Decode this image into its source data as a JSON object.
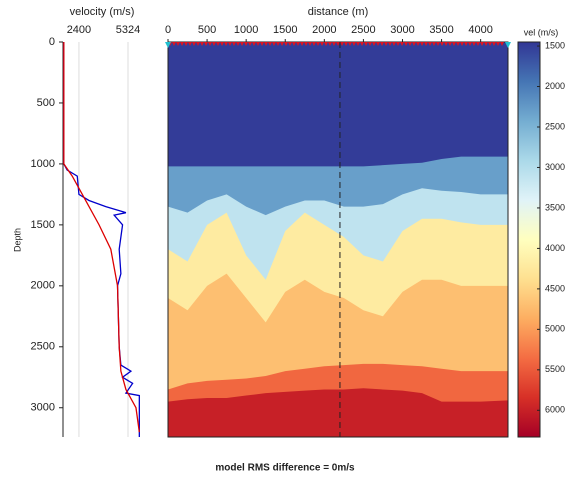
{
  "caption": "model RMS difference = 0m/s",
  "chart_data": [
    {
      "type": "line",
      "xlabel": "velocity (m/s)",
      "ylabel": "Depth",
      "xlim": [
        1450,
        6040
      ],
      "xticks": [
        2400,
        5324
      ],
      "ylim": [
        0,
        3240
      ],
      "yticks": [
        0,
        500,
        1000,
        1500,
        2000,
        2500,
        3000
      ],
      "grid": true,
      "series": [
        {
          "color": "#0000cc",
          "x": [
            1500,
            1500,
            1700,
            2300,
            2400,
            3000,
            4000,
            5200,
            4500,
            5000,
            4800,
            4900,
            4700,
            4800,
            4900,
            5500,
            5000,
            5600,
            5200,
            6000,
            6000
          ],
          "values": [
            0,
            1000,
            1050,
            1100,
            1250,
            1300,
            1350,
            1400,
            1420,
            1500,
            1700,
            1900,
            2000,
            2500,
            2650,
            2700,
            2750,
            2800,
            2880,
            2900,
            3240
          ]
        },
        {
          "color": "#dd0000",
          "x": [
            1500,
            1500,
            2000,
            2800,
            3600,
            4300,
            4700,
            4800,
            4900,
            5200,
            5800,
            6000
          ],
          "values": [
            0,
            1000,
            1100,
            1300,
            1500,
            1700,
            2000,
            2500,
            2700,
            2850,
            3000,
            3200
          ]
        }
      ]
    },
    {
      "type": "section",
      "xlabel": "distance (m)",
      "xlim": [
        0,
        4350
      ],
      "xticks": [
        0,
        500,
        1000,
        1500,
        2000,
        2500,
        3000,
        3500,
        4000,
        4000.0001
      ],
      "ylim": [
        0,
        3240
      ],
      "well_x": 2200,
      "colormap": [
        "#313695",
        "#4575b4",
        "#74add1",
        "#abd9e9",
        "#e0f3f8",
        "#ffffbf",
        "#fee090",
        "#fdae61",
        "#f46d43",
        "#d73027",
        "#a50026"
      ],
      "clim": [
        1450,
        6330
      ],
      "cticks": [
        1500,
        2000,
        2500,
        3000,
        3500,
        4000,
        4500,
        5000,
        5500,
        6000
      ],
      "clabel": "vel (m/s)",
      "x": [
        0,
        250,
        500,
        750,
        1000,
        1250,
        1500,
        1750,
        2000,
        2250,
        2500,
        2750,
        3000,
        3250,
        3500,
        3750,
        4000,
        4350
      ],
      "layers": [
        {
          "velocity": 1500,
          "top": [
            0,
            0,
            0,
            0,
            0,
            0,
            0,
            0,
            0,
            0,
            0,
            0,
            0,
            0,
            0,
            0,
            0,
            0
          ]
        },
        {
          "velocity": 2300,
          "top": [
            1020,
            1020,
            1020,
            1020,
            1020,
            1020,
            1020,
            1020,
            1020,
            1020,
            1020,
            1010,
            1000,
            990,
            960,
            940,
            940,
            940
          ]
        },
        {
          "velocity": 3100,
          "top": [
            1350,
            1400,
            1300,
            1250,
            1350,
            1420,
            1350,
            1300,
            1300,
            1350,
            1350,
            1330,
            1250,
            1200,
            1220,
            1230,
            1250,
            1250
          ]
        },
        {
          "velocity": 4200,
          "top": [
            1700,
            1800,
            1500,
            1400,
            1750,
            1950,
            1550,
            1400,
            1500,
            1600,
            1750,
            1800,
            1550,
            1450,
            1450,
            1480,
            1500,
            1500
          ]
        },
        {
          "velocity": 4700,
          "top": [
            2100,
            2200,
            2000,
            1900,
            2100,
            2300,
            2050,
            1950,
            2050,
            2100,
            2200,
            2250,
            2050,
            1950,
            1950,
            2000,
            2000,
            2000
          ]
        },
        {
          "velocity": 5400,
          "top": [
            2850,
            2800,
            2780,
            2770,
            2760,
            2740,
            2700,
            2680,
            2660,
            2650,
            2640,
            2640,
            2650,
            2660,
            2680,
            2700,
            2700,
            2700
          ]
        },
        {
          "velocity": 6000,
          "top": [
            2950,
            2930,
            2920,
            2920,
            2900,
            2880,
            2870,
            2860,
            2850,
            2850,
            2840,
            2850,
            2860,
            2880,
            2950,
            2950,
            2950,
            2940
          ]
        }
      ]
    }
  ]
}
